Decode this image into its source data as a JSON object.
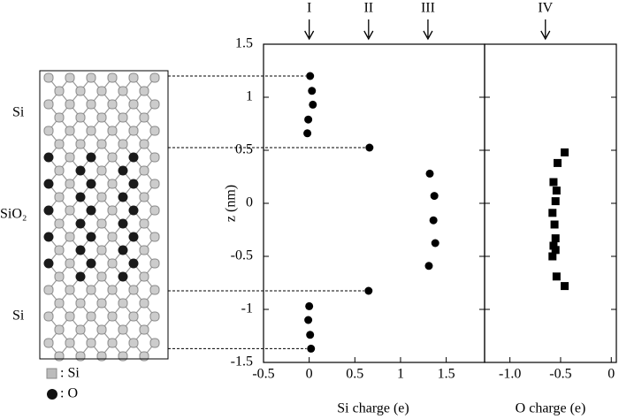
{
  "structure": {
    "regions": [
      "Si",
      "SiO₂",
      "Si"
    ],
    "legend": [
      ": Si",
      ": O"
    ]
  },
  "chart_data": [
    {
      "type": "scatter",
      "x_label": "Si charge (e)",
      "y_label": "z (nm)",
      "xlim": [
        -0.5,
        1.92
      ],
      "ylim": [
        -1.5,
        1.5
      ],
      "xticks": [
        -0.5,
        0,
        0.5,
        1,
        1.5
      ],
      "yticks": [
        1.5,
        1,
        0.5,
        0,
        -0.5,
        -1,
        -1.5
      ],
      "marker": "circle",
      "color": "#000000",
      "annotations": [
        {
          "text": "I",
          "x": 0
        },
        {
          "text": "II",
          "x": 0.65
        },
        {
          "text": "III",
          "x": 1.3
        }
      ],
      "x": [
        0.01,
        0.03,
        0.04,
        -0.01,
        -0.02,
        0.66,
        1.32,
        1.37,
        1.36,
        1.38,
        1.31,
        0.65,
        0,
        -0.01,
        0.01,
        0.02
      ],
      "values": [
        1.2,
        1.06,
        0.93,
        0.79,
        0.66,
        0.525,
        0.28,
        0.07,
        -0.16,
        -0.375,
        -0.59,
        -0.825,
        -0.97,
        -1.1,
        -1.24,
        -1.37
      ]
    },
    {
      "type": "scatter",
      "x_label": "O charge (e)",
      "xlim": [
        -1.25,
        0.05
      ],
      "ylim": [
        -1.5,
        1.5
      ],
      "xticks": [
        {
          "value": -1,
          "label": "-1.0"
        },
        -0.5,
        0
      ],
      "marker": "square",
      "color": "#000000",
      "annotations": [
        {
          "text": "IV",
          "x": -0.65
        }
      ],
      "x": [
        -0.46,
        -0.53,
        -0.57,
        -0.54,
        -0.55,
        -0.58,
        -0.56,
        -0.55,
        -0.57,
        -0.55,
        -0.58,
        -0.54,
        -0.46
      ],
      "values": [
        0.48,
        0.38,
        0.2,
        0.12,
        0.02,
        -0.09,
        -0.2,
        -0.33,
        -0.4,
        -0.44,
        -0.5,
        -0.69,
        -0.78
      ]
    }
  ]
}
